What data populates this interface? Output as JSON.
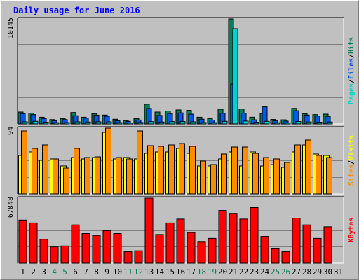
{
  "chart_data": {
    "type": "bar",
    "title": "Daily usage for June 2016",
    "categories": [
      "1",
      "2",
      "3",
      "4",
      "5",
      "6",
      "7",
      "8",
      "9",
      "10",
      "11",
      "12",
      "13",
      "14",
      "15",
      "16",
      "17",
      "18",
      "19",
      "20",
      "21",
      "22",
      "23",
      "24",
      "25",
      "26",
      "27",
      "28",
      "29",
      "30",
      "31"
    ],
    "weekend_days": [
      "4",
      "5",
      "11",
      "12",
      "18",
      "19",
      "25",
      "26"
    ],
    "panels": [
      {
        "id": "top",
        "max_label": "10145",
        "ymax": 10145,
        "series": [
          {
            "name": "Hits",
            "color": "#00805c",
            "values": [
              1150,
              1050,
              650,
              420,
              520,
              1100,
              650,
              1000,
              860,
              450,
              330,
              500,
              1900,
              1150,
              1250,
              1350,
              1320,
              650,
              520,
              1420,
              10145,
              1450,
              650,
              1000,
              430,
              400,
              1500,
              1000,
              900,
              950,
              null
            ]
          },
          {
            "name": "Files",
            "color": "#0058e8",
            "values": [
              1000,
              900,
              520,
              310,
              420,
              800,
              560,
              850,
              740,
              310,
              250,
              380,
              1500,
              820,
              1000,
              1070,
              940,
              460,
              370,
              1030,
              3850,
              1040,
              400,
              1650,
              300,
              280,
              1280,
              860,
              760,
              720,
              null
            ]
          },
          {
            "name": "Pages",
            "color": "#00d0d0",
            "values": [
              200,
              250,
              160,
              120,
              130,
              200,
              180,
              210,
              200,
              120,
              100,
              140,
              220,
              180,
              220,
              230,
              200,
              130,
              120,
              250,
              9200,
              280,
              160,
              250,
              120,
              110,
              240,
              190,
              170,
              180,
              null
            ]
          }
        ],
        "legend": [
          {
            "text": "Pages",
            "color": "#00d0d0"
          },
          {
            "text": "Files",
            "color": "#0058e8"
          },
          {
            "text": "Hits",
            "color": "#00805c"
          }
        ]
      },
      {
        "id": "mid",
        "max_label": "94",
        "ymax": 94,
        "series": [
          {
            "name": "Visits",
            "color": "#ffff00",
            "values": [
              55,
              60,
              48,
              50,
              40,
              52,
              50,
              52,
              88,
              50,
              52,
              50,
              58,
              60,
              60,
              65,
              58,
              40,
              40,
              50,
              60,
              40,
              60,
              40,
              42,
              38,
              60,
              70,
              57,
              55,
              null
            ]
          },
          {
            "name": "Sites",
            "color": "#ff8c00",
            "values": [
              90,
              65,
              70,
              50,
              37,
              65,
              52,
              53,
              94,
              52,
              50,
              90,
              69,
              68,
              70,
              72,
              68,
              47,
              42,
              57,
              67,
              67,
              58,
              52,
              50,
              45,
              70,
              77,
              55,
              52,
              null
            ]
          }
        ],
        "legend": [
          {
            "text": "Sites",
            "color": "#ff8c00"
          },
          {
            "text": "Visits",
            "color": "#ffff00"
          }
        ]
      },
      {
        "id": "bot",
        "max_label": "67848",
        "ymax": 67848,
        "series": [
          {
            "name": "KBytes",
            "color": "#ff0000",
            "values": [
              45000,
              42000,
              25000,
              17000,
              18000,
              40000,
              31000,
              29000,
              34000,
              31000,
              12000,
              13000,
              67848,
              30000,
              42000,
              46000,
              32000,
              22000,
              26000,
              55000,
              52000,
              46000,
              58000,
              28000,
              15000,
              12000,
              47000,
              40000,
              26000,
              38000,
              null
            ]
          }
        ],
        "legend": [
          {
            "text": "KBytes",
            "color": "#ff0000"
          }
        ]
      }
    ]
  }
}
